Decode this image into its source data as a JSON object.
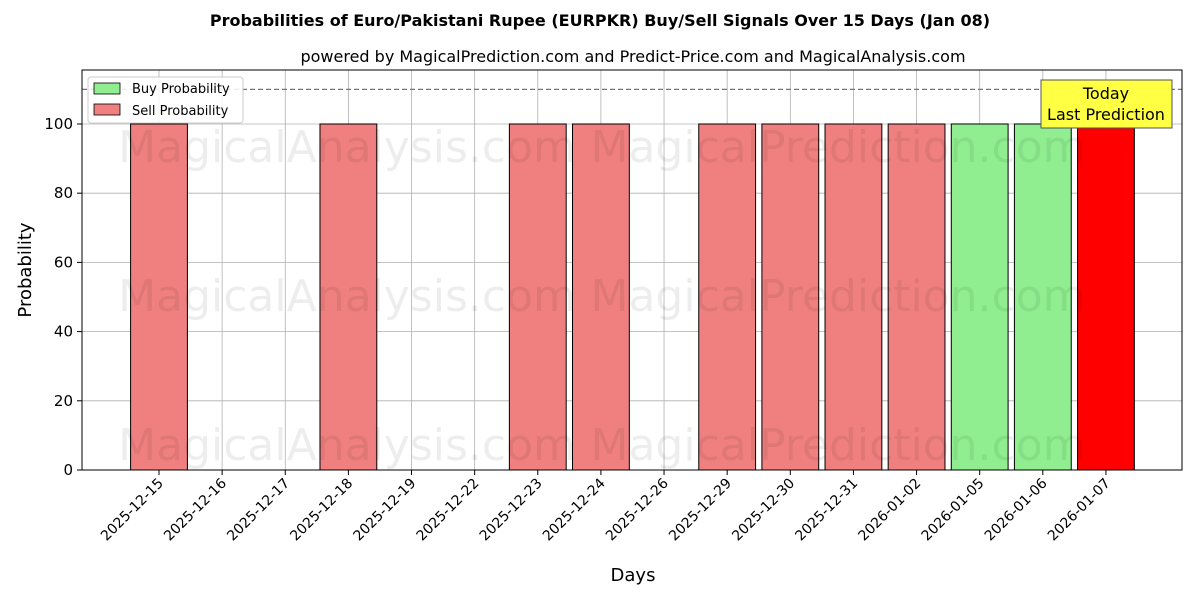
{
  "chart_data": {
    "type": "bar",
    "title": "Probabilities of Euro/Pakistani Rupee (EURPKR) Buy/Sell Signals Over 15 Days (Jan 08)",
    "subtitle": "powered by MagicalPrediction.com and Predict-Price.com and MagicalAnalysis.com",
    "xlabel": "Days",
    "ylabel": "Probability",
    "ylim": [
      0,
      115.6
    ],
    "yticks": [
      0,
      20,
      40,
      60,
      80,
      100
    ],
    "grid": true,
    "legend_position": "top-left",
    "categories": [
      "2025-12-15",
      "2025-12-16",
      "2025-12-17",
      "2025-12-18",
      "2025-12-19",
      "2025-12-22",
      "2025-12-23",
      "2025-12-24",
      "2025-12-26",
      "2025-12-29",
      "2025-12-30",
      "2025-12-31",
      "2026-01-02",
      "2026-01-05",
      "2026-01-06",
      "2026-01-07"
    ],
    "series": [
      {
        "name": "Buy Probability",
        "color": "#90ee90",
        "values": [
          0,
          0,
          0,
          0,
          0,
          0,
          0,
          0,
          0,
          0,
          0,
          0,
          0,
          100,
          100,
          0
        ]
      },
      {
        "name": "Sell Probability",
        "color": "#f08080",
        "values": [
          100,
          0,
          0,
          100,
          0,
          0,
          100,
          100,
          0,
          100,
          100,
          100,
          100,
          0,
          0,
          100
        ]
      }
    ],
    "highlight": {
      "category": "2026-01-07",
      "color": "#ff0000"
    },
    "reference_line": {
      "y": 110,
      "style": "dashed"
    },
    "annotation": {
      "line1": "Today",
      "line2": "Last Prediction",
      "color": "#ffff44"
    },
    "watermarks": [
      "MagicalAnalysis.com",
      "MagicalPrediction.com"
    ]
  }
}
